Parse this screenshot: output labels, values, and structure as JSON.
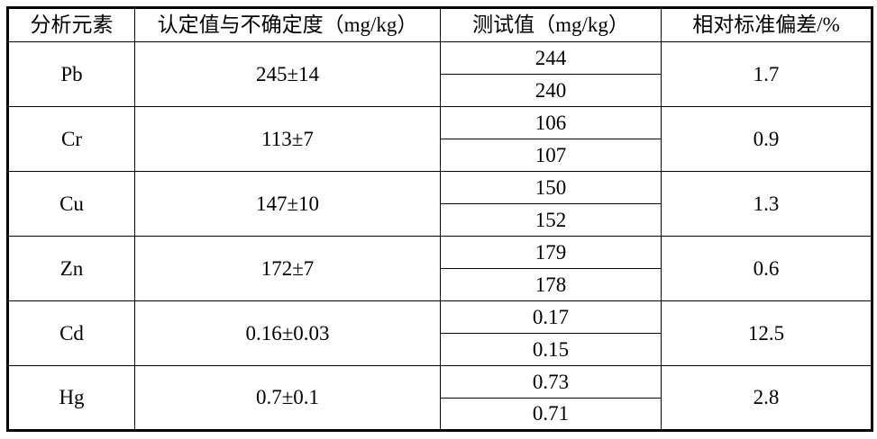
{
  "table": {
    "headers": [
      "分析元素",
      "认定值与不确定度（mg/kg）",
      "测试值（mg/kg）",
      "相对标准偏差/%"
    ],
    "rows": [
      {
        "element": "Pb",
        "certified": "245±14",
        "tests": [
          "244",
          "240"
        ],
        "rsd": "1.7"
      },
      {
        "element": "Cr",
        "certified": "113±7",
        "tests": [
          "106",
          "107"
        ],
        "rsd": "0.9"
      },
      {
        "element": "Cu",
        "certified": "147±10",
        "tests": [
          "150",
          "152"
        ],
        "rsd": "1.3"
      },
      {
        "element": "Zn",
        "certified": "172±7",
        "tests": [
          "179",
          "178"
        ],
        "rsd": "0.6"
      },
      {
        "element": "Cd",
        "certified": "0.16±0.03",
        "tests": [
          "0.17",
          "0.15"
        ],
        "rsd": "12.5"
      },
      {
        "element": "Hg",
        "certified": "0.7±0.1",
        "tests": [
          "0.73",
          "0.71"
        ],
        "rsd": "2.8"
      }
    ],
    "colors": {
      "border": "#000000",
      "background": "#ffffff",
      "text": "#000000"
    }
  }
}
